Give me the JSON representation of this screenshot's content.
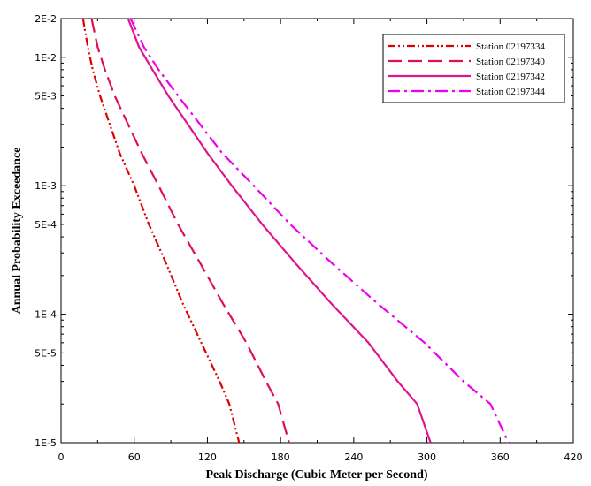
{
  "chart_data": {
    "type": "line",
    "title": "",
    "xlabel": "Peak Discharge (Cubic Meter per Second)",
    "ylabel": "Annual Probability Exceedance",
    "xlim": [
      0,
      420
    ],
    "ylim": [
      1e-05,
      0.02
    ],
    "yscale": "log",
    "grid": false,
    "legend_position": "top-right",
    "x_ticks": [
      0,
      60,
      120,
      180,
      240,
      300,
      360,
      420
    ],
    "x_tick_labels": [
      "0",
      "60",
      "120",
      "180",
      "240",
      "300",
      "360",
      "420"
    ],
    "y_ticks": [
      0.02,
      0.01,
      0.005,
      0.001,
      0.0005,
      0.0001,
      5e-05,
      1e-05
    ],
    "y_tick_labels": [
      "2E-2",
      "1E-2",
      "5E-3",
      "1E-3",
      "5E-4",
      "1E-4",
      "5E-5",
      "1E-5"
    ],
    "series": [
      {
        "name": "Station 02197334",
        "color": "#e00000",
        "dash": "dash-dot-dot",
        "points": [
          [
            18,
            0.02
          ],
          [
            22,
            0.012
          ],
          [
            26,
            0.008
          ],
          [
            32,
            0.005
          ],
          [
            40,
            0.003
          ],
          [
            48,
            0.0018
          ],
          [
            60,
            0.001
          ],
          [
            72,
            0.0005
          ],
          [
            86,
            0.00025
          ],
          [
            100,
            0.00012
          ],
          [
            115,
            6e-05
          ],
          [
            130,
            3e-05
          ],
          [
            138,
            2e-05
          ],
          [
            146,
            1e-05
          ]
        ]
      },
      {
        "name": "Station 02197340",
        "color": "#e0104a",
        "dash": "long-dash",
        "points": [
          [
            25,
            0.02
          ],
          [
            30,
            0.012
          ],
          [
            36,
            0.008
          ],
          [
            44,
            0.005
          ],
          [
            55,
            0.003
          ],
          [
            66,
            0.0018
          ],
          [
            80,
            0.001
          ],
          [
            96,
            0.0005
          ],
          [
            114,
            0.00025
          ],
          [
            133,
            0.00012
          ],
          [
            152,
            6e-05
          ],
          [
            168,
            3e-05
          ],
          [
            178,
            2e-05
          ],
          [
            187,
            1e-05
          ]
        ]
      },
      {
        "name": "Station 02197342",
        "color": "#e0148c",
        "dash": "solid",
        "points": [
          [
            55,
            0.02
          ],
          [
            64,
            0.012
          ],
          [
            75,
            0.008
          ],
          [
            88,
            0.005
          ],
          [
            104,
            0.003
          ],
          [
            120,
            0.0018
          ],
          [
            140,
            0.001
          ],
          [
            165,
            0.0005
          ],
          [
            192,
            0.00025
          ],
          [
            222,
            0.00012
          ],
          [
            252,
            6e-05
          ],
          [
            276,
            3e-05
          ],
          [
            292,
            2e-05
          ],
          [
            303,
            1e-05
          ]
        ]
      },
      {
        "name": "Station 02197344",
        "color": "#ee00ee",
        "dash": "dash-dot",
        "points": [
          [
            57,
            0.02
          ],
          [
            68,
            0.012
          ],
          [
            80,
            0.008
          ],
          [
            96,
            0.005
          ],
          [
            114,
            0.003
          ],
          [
            132,
            0.0018
          ],
          [
            158,
            0.001
          ],
          [
            188,
            0.0005
          ],
          [
            222,
            0.00025
          ],
          [
            260,
            0.00012
          ],
          [
            298,
            6e-05
          ],
          [
            330,
            3e-05
          ],
          [
            352,
            2e-05
          ],
          [
            367,
            1e-05
          ]
        ]
      }
    ]
  }
}
